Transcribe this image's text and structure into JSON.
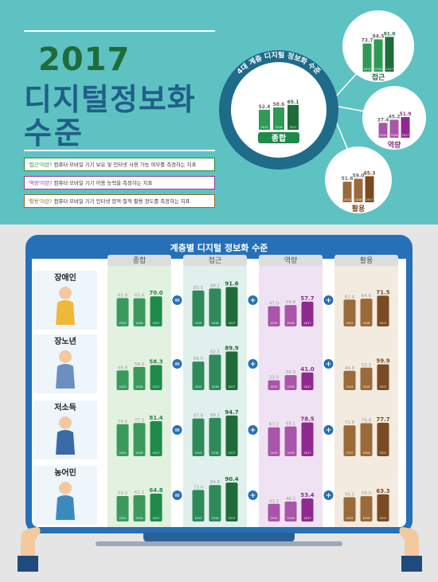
{
  "header": {
    "year": "2017",
    "title_line1": "디지털정보화",
    "title_line2": "수준",
    "definitions": [
      {
        "term": "'접근'이란?",
        "text": " 컴퓨터·모바일 기기 보유 및 인터넷 사용 가능 여부를 측정하는 지표",
        "color": "#2e8b3a"
      },
      {
        "term": "'역량'이란?",
        "text": " 컴퓨터·모바일 기기 이용 능력을 측정하는 지표",
        "color": "#9a3aa8"
      },
      {
        "term": "'활용'이란?",
        "text": " 컴퓨터·모바일 기기 인터넷 양적·질적 활용 정도를 측정하는 지표",
        "color": "#9a6a2a"
      }
    ]
  },
  "overview": {
    "ring_label": "4대 계층 디지털 정보화 수준",
    "main": {
      "label": "종합",
      "years": [
        "2015",
        "2016",
        "2017"
      ],
      "values": [
        52.4,
        58.6,
        65.1
      ]
    },
    "access": {
      "label": "접근",
      "years": [
        "2015",
        "2016",
        "2017"
      ],
      "values": [
        73.7,
        84.5,
        91.0
      ]
    },
    "capability": {
      "label": "역량",
      "years": [
        "2015",
        "2016",
        "2017"
      ],
      "values": [
        37.4,
        45.2,
        51.9
      ]
    },
    "usage": {
      "label": "활용",
      "years": [
        "2015",
        "2016",
        "2017"
      ],
      "values": [
        51.6,
        59.0,
        65.3
      ]
    }
  },
  "monitor": {
    "title": "계층별 디지털 정보화 수준",
    "columns": [
      "종합",
      "접근",
      "역량",
      "활용"
    ]
  },
  "colors": {
    "teal_bg": "#5ec2c2",
    "green": "#1f8a4a",
    "dark_green": "#1f6b3a",
    "blue": "#2670b8",
    "purple": "#8e2a8f",
    "brown": "#7a4a22"
  },
  "chart_data": [
    {
      "type": "bar",
      "title": "계층별 디지털 정보화 수준",
      "categories": [
        "2015",
        "2016",
        "2017"
      ],
      "groups": [
        {
          "name": "장애인",
          "series": [
            {
              "name": "종합",
              "values": [
                65.9,
                65.4,
                70.0
              ]
            },
            {
              "name": "접근",
              "values": [
                83.5,
                88.1,
                91.6
              ]
            },
            {
              "name": "역량",
              "values": [
                47.0,
                49.8,
                57.7
              ]
            },
            {
              "name": "활용",
              "values": [
                62.4,
                64.6,
                71.5
              ]
            }
          ]
        },
        {
          "name": "장노년",
          "series": [
            {
              "name": "종합",
              "values": [
                45.8,
                54.0,
                58.3
              ]
            },
            {
              "name": "접근",
              "values": [
                66.5,
                82.5,
                89.9
              ]
            },
            {
              "name": "역량",
              "values": [
                23.0,
                34.9,
                41.0
              ]
            },
            {
              "name": "활용",
              "values": [
                44.8,
                52.2,
                59.9
              ]
            }
          ]
        },
        {
          "name": "저소득",
          "series": [
            {
              "name": "종합",
              "values": [
                74.5,
                77.3,
                81.4
              ]
            },
            {
              "name": "접근",
              "values": [
                87.8,
                89.2,
                94.7
              ]
            },
            {
              "name": "역량",
              "values": [
                67.2,
                69.1,
                78.5
              ]
            },
            {
              "name": "활용",
              "values": [
                71.8,
                76.8,
                77.7
              ]
            }
          ]
        },
        {
          "name": "농어민",
          "series": [
            {
              "name": "종합",
              "values": [
                59.3,
                61.1,
                64.8
              ]
            },
            {
              "name": "접근",
              "values": [
                73.4,
                84.8,
                90.4
              ]
            },
            {
              "name": "역량",
              "values": [
                41.2,
                46.2,
                53.4
              ]
            },
            {
              "name": "활용",
              "values": [
                56.5,
                59.0,
                63.3
              ]
            }
          ]
        }
      ]
    }
  ]
}
